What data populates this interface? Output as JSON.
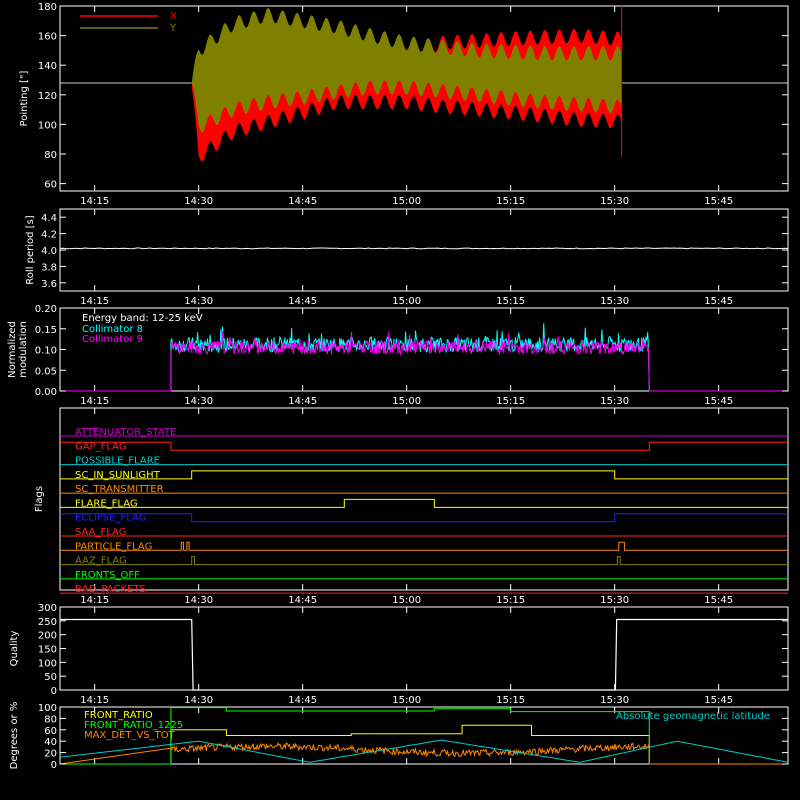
{
  "time_axis": {
    "ticks": [
      "14:15",
      "14:30",
      "14:45",
      "15:00",
      "15:15",
      "15:30",
      "15:45"
    ],
    "tick_minutes": [
      855,
      870,
      885,
      900,
      915,
      930,
      945
    ],
    "range_minutes": [
      850,
      955
    ]
  },
  "chart_data": [
    {
      "type": "area",
      "ylabel": "Pointing [\"]",
      "ylim": [
        55,
        180
      ],
      "yticks": [
        "60",
        "80",
        "100",
        "120",
        "140",
        "160",
        "180"
      ],
      "ytick_values": [
        60,
        80,
        100,
        120,
        140,
        160,
        180
      ],
      "legend": "top-left",
      "baseline": 128,
      "x_start": "14:29",
      "x_end": "15:31",
      "series": [
        {
          "name": "X",
          "color": "#ff0000",
          "upper": [
            [
              869,
              125
            ],
            [
              870,
              148
            ],
            [
              875,
              152
            ],
            [
              885,
              150
            ],
            [
              890,
              145
            ],
            [
              900,
              148
            ],
            [
              905,
              155
            ],
            [
              915,
              158
            ],
            [
              925,
              160
            ],
            [
              930,
              158
            ]
          ],
          "lower": [
            [
              869,
              125
            ],
            [
              870,
              78
            ],
            [
              875,
              95
            ],
            [
              885,
              108
            ],
            [
              890,
              115
            ],
            [
              900,
              115
            ],
            [
              905,
              112
            ],
            [
              915,
              108
            ],
            [
              925,
              103
            ],
            [
              930,
              102
            ]
          ]
        },
        {
          "name": "Y",
          "color": "#808000",
          "upper": [
            [
              869,
              128
            ],
            [
              870,
              150
            ],
            [
              875,
              168
            ],
            [
              880,
              174
            ],
            [
              885,
              170
            ],
            [
              890,
              166
            ],
            [
              895,
              160
            ],
            [
              900,
              155
            ],
            [
              910,
              150
            ],
            [
              920,
              148
            ],
            [
              930,
              148
            ]
          ],
          "lower": [
            [
              869,
              128
            ],
            [
              870,
              98
            ],
            [
              875,
              110
            ],
            [
              880,
              115
            ],
            [
              885,
              118
            ],
            [
              890,
              122
            ],
            [
              895,
              125
            ],
            [
              900,
              125
            ],
            [
              910,
              120
            ],
            [
              920,
              115
            ],
            [
              930,
              112
            ]
          ]
        }
      ]
    },
    {
      "type": "line",
      "ylabel": "Roll period [s]",
      "ylim": [
        3.5,
        4.5
      ],
      "yticks": [
        "3.6",
        "3.8",
        "4.0",
        "4.2",
        "4.4"
      ],
      "ytick_values": [
        3.6,
        3.8,
        4.0,
        4.2,
        4.4
      ],
      "series": [
        {
          "color": "#ffffff",
          "x": [
            850,
            955
          ],
          "y": [
            4.02,
            4.02
          ]
        }
      ]
    },
    {
      "type": "line",
      "ylabel_lines": [
        "Normalized",
        "modulation"
      ],
      "ylim": [
        0,
        0.2
      ],
      "yticks": [
        "0.00",
        "0.05",
        "0.10",
        "0.15",
        "0.20"
      ],
      "ytick_values": [
        0,
        0.05,
        0.1,
        0.15,
        0.2
      ],
      "annotation": "Energy band: 12-25 keV",
      "x_start": "14:26",
      "x_end": "15:35",
      "series": [
        {
          "name": "Collimator 8",
          "color": "#00ffff",
          "mean": 0.112,
          "spread": 0.018
        },
        {
          "name": "Collimator 9",
          "color": "#ff00ff",
          "mean": 0.105,
          "spread": 0.016
        }
      ]
    },
    {
      "type": "step",
      "ylabel": "Flags",
      "flags": [
        {
          "name": "ATTENUATOR_STATE",
          "color": "#cc00cc",
          "on": []
        },
        {
          "name": "GAP_FLAG",
          "color": "#ff2222",
          "on": [
            [
              850,
              866
            ],
            [
              935,
              955
            ]
          ]
        },
        {
          "name": "POSSIBLE_FLARE",
          "color": "#00cccc",
          "on": []
        },
        {
          "name": "SC_IN_SUNLIGHT",
          "color": "#ffff00",
          "on": [
            [
              869,
              930
            ]
          ]
        },
        {
          "name": "SC_TRANSMITTER",
          "color": "#ff8800",
          "on": []
        },
        {
          "name": "FLARE_FLAG",
          "color": "#ffff00",
          "on": [
            [
              891,
              904
            ]
          ]
        },
        {
          "name": "ECLIPSE_FLAG",
          "color": "#2222ff",
          "on": [
            [
              850,
              869
            ],
            [
              930,
              955
            ]
          ]
        },
        {
          "name": "SAA_FLAG",
          "color": "#ff2222",
          "on": []
        },
        {
          "name": "PARTICLE_FLAG",
          "color": "#ff8800",
          "on": [
            [
              867.5,
              867.8
            ],
            [
              868.3,
              868.6
            ],
            [
              930.6,
              931.4
            ]
          ]
        },
        {
          "name": "AAZ_FLAG",
          "color": "#808000",
          "on": [
            [
              869,
              869.4
            ],
            [
              930.4,
              930.8
            ]
          ]
        },
        {
          "name": "FRONTS_OFF",
          "color": "#00ff00",
          "on": []
        },
        {
          "name": "BAD_PACKETS",
          "color": "#ff2222",
          "on": []
        }
      ]
    },
    {
      "type": "step",
      "ylabel": "Quality",
      "ylim": [
        0,
        300
      ],
      "yticks": [
        "0",
        "50",
        "100",
        "150",
        "200",
        "250",
        "300"
      ],
      "ytick_values": [
        0,
        50,
        100,
        150,
        200,
        250,
        300
      ],
      "series": [
        {
          "color": "#ffffff",
          "x": [
            850,
            869,
            869.2,
            930.1,
            930.3,
            955
          ],
          "y": [
            255,
            255,
            0,
            0,
            255,
            255
          ]
        }
      ]
    },
    {
      "type": "line",
      "ylabel": "Degrees or %",
      "ylim": [
        0,
        100
      ],
      "yticks": [
        "0",
        "20",
        "40",
        "60",
        "80",
        "100"
      ],
      "ytick_values": [
        0,
        20,
        40,
        60,
        80,
        100
      ],
      "series": [
        {
          "name": "FRONT_RATIO",
          "color": "#ffff00",
          "x": [
            850,
            866,
            866,
            874,
            874,
            892,
            892,
            908,
            908,
            918,
            918,
            935,
            935,
            955
          ],
          "y": [
            0,
            0,
            60,
            60,
            50,
            50,
            53,
            53,
            68,
            68,
            50,
            50,
            0,
            0
          ]
        },
        {
          "name": "FRONT_RATIO_1225",
          "color": "#00ff00",
          "x": [
            850,
            866,
            866,
            874,
            874,
            904,
            904,
            915,
            915,
            935,
            935,
            955
          ],
          "y": [
            0,
            0,
            99,
            99,
            93,
            93,
            97,
            97,
            92,
            92,
            0,
            0
          ]
        },
        {
          "name": "MAX_DET_VS_TOT",
          "color": "#ff8800",
          "x": [
            866,
            935
          ],
          "y": [
            25,
            25
          ],
          "noise": 6
        },
        {
          "name": "Absolute geomagnetic latitude",
          "color": "#00cccc",
          "x": [
            850,
            870,
            886,
            905,
            925,
            939,
            955
          ],
          "y": [
            12,
            40,
            3,
            42,
            3,
            40,
            3
          ]
        }
      ]
    }
  ]
}
